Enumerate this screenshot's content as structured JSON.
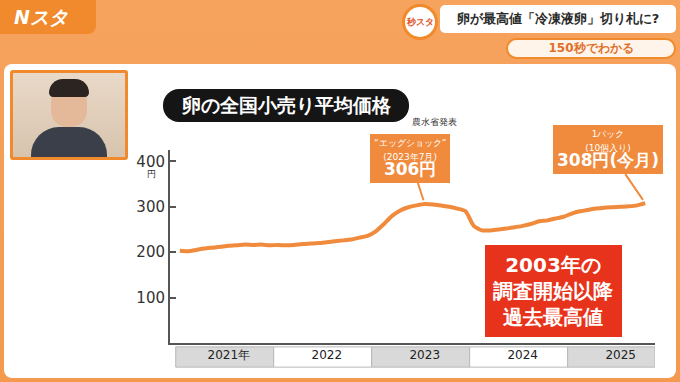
{
  "header": {
    "logo": "Nスタ",
    "icon": "秒スタ",
    "title": "卵が最高値「冷凍液卵」切り札に?",
    "subtitle": "150秒でわかる"
  },
  "chart_data": {
    "type": "line",
    "title": "卵の全国小売り平均価格",
    "source": "農水省発表",
    "ylabel": "円",
    "categories": [
      null,
      null,
      null,
      null,
      null,
      null,
      "2021年",
      null,
      null,
      null,
      null,
      null,
      null,
      null,
      null,
      null,
      null,
      null,
      "2022",
      null,
      null,
      null,
      null,
      null,
      null,
      null,
      null,
      null,
      null,
      null,
      "2023",
      null,
      null,
      null,
      null,
      null,
      null,
      null,
      null,
      null,
      null,
      null,
      "2024",
      null,
      null,
      null,
      null,
      null,
      null,
      null,
      null,
      null,
      null,
      null,
      "2025",
      null,
      null,
      null
    ],
    "values": [
      203,
      202,
      205,
      208,
      210,
      212,
      214,
      215,
      217,
      216,
      217,
      215,
      216,
      215,
      216,
      218,
      219,
      220,
      222,
      224,
      226,
      228,
      232,
      236,
      246,
      262,
      280,
      292,
      299,
      303,
      306,
      305,
      303,
      300,
      296,
      290,
      258,
      248,
      248,
      250,
      252,
      255,
      258,
      262,
      268,
      270,
      274,
      278,
      285,
      290,
      293,
      296,
      298,
      299,
      300,
      301,
      303,
      308
    ],
    "color": "#f08a3c",
    "ylim": [
      0,
      425
    ],
    "yticks": [
      100,
      200,
      300,
      400
    ],
    "grid": false,
    "annotations": [
      {
        "index": 30,
        "lines": [
          "“エッグショック”",
          "(2023年7月)",
          "306円"
        ]
      },
      {
        "index": 57,
        "lines": [
          "1パック",
          "(10個入り)",
          "308円(今月)"
        ]
      }
    ],
    "note": [
      "2003年の",
      "調査開始以降",
      "過去最高値"
    ]
  }
}
